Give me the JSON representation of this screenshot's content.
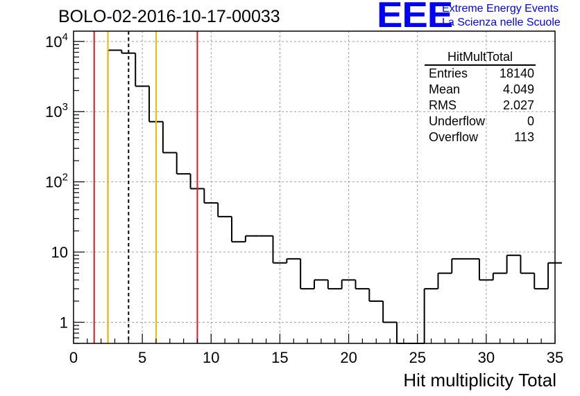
{
  "header": {
    "title": "BOLO-02-2016-10-17-00033",
    "logo_text": "EEE",
    "logo_line1": "Extreme Energy Events",
    "logo_line2": "La Scienza nelle Scuole"
  },
  "stats_box": {
    "title": "HitMultTotal",
    "rows": [
      {
        "key": "Entries",
        "value": "18140"
      },
      {
        "key": "Mean",
        "value": "4.049"
      },
      {
        "key": "RMS",
        "value": "2.027"
      },
      {
        "key": "Underflow",
        "value": "0"
      },
      {
        "key": "Overflow",
        "value": "113"
      }
    ]
  },
  "colors": {
    "histogram": "#000000",
    "red_lines": "#e8141e",
    "yellow_lines": "#f5b800",
    "mean_line": "#000000",
    "grid": "#a0a0a0",
    "logo": "#0000ff"
  },
  "chart_data": {
    "type": "histogram",
    "title": "BOLO-02-2016-10-17-00033",
    "xlabel": "Hit multiplicity Total",
    "ylabel": "",
    "xlim": [
      0,
      35
    ],
    "ylim": [
      0.5,
      14000
    ],
    "yscale": "log",
    "grid": true,
    "bin_edges_start": 2.5,
    "bin_width": 1,
    "bin_values": [
      7500,
      6800,
      2300,
      720,
      260,
      130,
      80,
      50,
      32,
      14,
      17,
      17,
      7,
      8,
      3,
      4,
      3,
      4,
      3,
      2,
      1,
      0,
      0,
      3,
      5,
      8,
      8,
      4,
      5,
      9,
      5,
      3,
      7
    ],
    "x_ticks": [
      {
        "value": 0,
        "label": "0"
      },
      {
        "value": 5,
        "label": "5"
      },
      {
        "value": 10,
        "label": "10"
      },
      {
        "value": 15,
        "label": "15"
      },
      {
        "value": 20,
        "label": "20"
      },
      {
        "value": 25,
        "label": "25"
      },
      {
        "value": 30,
        "label": "30"
      },
      {
        "value": 35,
        "label": "35"
      }
    ],
    "y_ticks": [
      {
        "value": 1,
        "label": "1"
      },
      {
        "value": 10,
        "label": "10"
      },
      {
        "value": 100,
        "label": "10",
        "exp": "2"
      },
      {
        "value": 1000,
        "label": "10",
        "exp": "3"
      },
      {
        "value": 10000,
        "label": "10",
        "exp": "4"
      }
    ],
    "vertical_lines": [
      {
        "name": "red-line-low",
        "x": 1.5,
        "color": "#e8141e",
        "style": "solid"
      },
      {
        "name": "yellow-line-low",
        "x": 2.5,
        "color": "#f5b800",
        "style": "solid"
      },
      {
        "name": "mean-line",
        "x": 4.0,
        "color": "#000000",
        "style": "dashed"
      },
      {
        "name": "yellow-line-high",
        "x": 6.0,
        "color": "#f5b800",
        "style": "solid"
      },
      {
        "name": "red-line-high",
        "x": 9.0,
        "color": "#e8141e",
        "style": "solid"
      }
    ]
  }
}
